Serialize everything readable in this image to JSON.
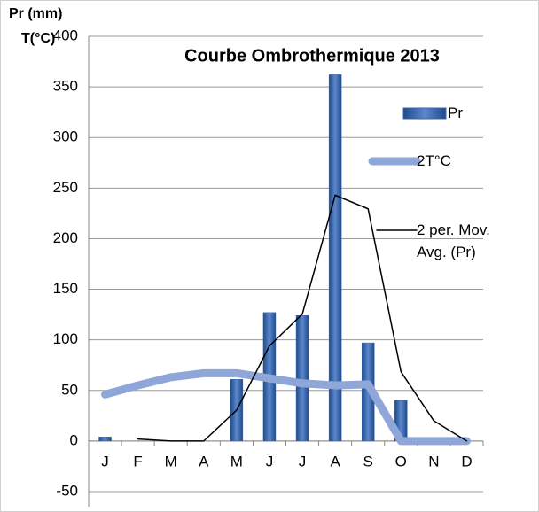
{
  "chart_data": {
    "type": "bar",
    "title": "Courbe Ombrothermique 2013",
    "y_label": "Pr (mm)",
    "y_label_2": "T(°C)",
    "categories": [
      "J",
      "F",
      "M",
      "A",
      "M",
      "J",
      "J",
      "A",
      "S",
      "O",
      "N",
      "D"
    ],
    "series": [
      {
        "name": "Pr",
        "type": "bar",
        "color": "#3464a8",
        "values": [
          4,
          0,
          0,
          0,
          61,
          127,
          124,
          362,
          97,
          40,
          0,
          0
        ]
      },
      {
        "name": "2T°C",
        "type": "line",
        "color": "#8ea7d8",
        "values": [
          46,
          55,
          63,
          67,
          67,
          62,
          57,
          55,
          56,
          0,
          0,
          0
        ]
      },
      {
        "name": "2 per. Mov. Avg. (Pr)",
        "type": "line",
        "color": "#000000",
        "values": [
          null,
          2,
          0,
          0,
          30.5,
          94,
          125.5,
          243,
          229.5,
          68.5,
          20,
          0
        ]
      }
    ],
    "ylim": [
      -50,
      400
    ],
    "yticks": [
      -50,
      0,
      50,
      100,
      150,
      200,
      250,
      300,
      350,
      400
    ],
    "grid": true,
    "legend": "right"
  }
}
